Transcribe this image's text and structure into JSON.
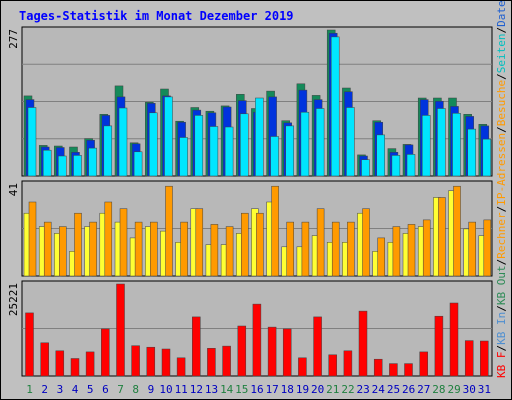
{
  "title": "Tages-Statistik im Monat Dezember 2019",
  "colors": {
    "background": "#c0c0c0",
    "panel": "#b8b8b8",
    "grid": "#808080",
    "title": "#0000ff",
    "weekday_label": "#0000c0",
    "weekend_label": "#208040",
    "anfragen": "#148a5a",
    "dateien": "#0033dd",
    "seiten": "#00e6ff",
    "rechner": "#ffff33",
    "besuche": "#ff9a00",
    "kbf": "#ff0000"
  },
  "side_labels": [
    {
      "text": "KB F",
      "color": "#ff0000"
    },
    {
      "text": "/",
      "color": "#000000"
    },
    {
      "text": "KB In",
      "color": "#4f8fd0"
    },
    {
      "text": "/",
      "color": "#000000"
    },
    {
      "text": "KB Out",
      "color": "#2e8b57"
    },
    {
      "text": "/",
      "color": "#000000"
    },
    {
      "text": "Rechner",
      "color": "#ff9a00"
    },
    {
      "text": "/",
      "color": "#000000"
    },
    {
      "text": "IP-Adressen",
      "color": "#ff9a00"
    },
    {
      "text": "/",
      "color": "#000000"
    },
    {
      "text": "Besuche",
      "color": "#ff9a00"
    },
    {
      "text": "/",
      "color": "#000000"
    },
    {
      "text": "Seiten",
      "color": "#00bfbf"
    },
    {
      "text": "/",
      "color": "#000000"
    },
    {
      "text": "Dateien",
      "color": "#1e5fd0"
    },
    {
      "text": "/",
      "color": "#000000"
    },
    {
      "text": "Anfragen",
      "color": "#2e8b57"
    }
  ],
  "chart_data": [
    {
      "type": "bar",
      "panel": "top",
      "ytick_label": "277",
      "ylim": [
        0,
        277
      ],
      "x": [
        1,
        2,
        3,
        4,
        5,
        6,
        7,
        8,
        9,
        10,
        11,
        12,
        13,
        14,
        15,
        16,
        17,
        18,
        19,
        20,
        21,
        22,
        23,
        24,
        25,
        26,
        27,
        28,
        29,
        30,
        31
      ],
      "series": [
        {
          "name": "Anfragen",
          "values": [
            152,
            58,
            57,
            55,
            71,
            117,
            171,
            63,
            140,
            165,
            104,
            130,
            123,
            133,
            155,
            128,
            161,
            105,
            175,
            153,
            277,
            167,
            40,
            105,
            52,
            60,
            148,
            148,
            148,
            117,
            98
          ]
        },
        {
          "name": "Dateien",
          "values": [
            145,
            55,
            54,
            45,
            68,
            115,
            150,
            61,
            138,
            152,
            102,
            125,
            120,
            131,
            143,
            121,
            150,
            101,
            163,
            145,
            271,
            160,
            38,
            102,
            45,
            59,
            145,
            142,
            132,
            113,
            95
          ]
        },
        {
          "name": "Seiten",
          "values": [
            130,
            49,
            38,
            39,
            53,
            95,
            129,
            46,
            120,
            150,
            73,
            115,
            94,
            93,
            118,
            148,
            75,
            95,
            121,
            128,
            264,
            130,
            31,
            78,
            39,
            41,
            115,
            128,
            119,
            89,
            70
          ]
        }
      ]
    },
    {
      "type": "bar",
      "panel": "middle",
      "ytick_label": "41",
      "ylim": [
        0,
        41
      ],
      "x": [
        1,
        2,
        3,
        4,
        5,
        6,
        7,
        8,
        9,
        10,
        11,
        12,
        13,
        14,
        15,
        16,
        17,
        18,
        19,
        20,
        21,
        22,
        23,
        24,
        25,
        26,
        27,
        28,
        29,
        30,
        31
      ],
      "series": [
        {
          "name": "Rechner",
          "values": [
            28,
            22,
            19,
            11,
            22,
            28,
            24,
            17,
            22,
            20,
            15,
            30,
            14,
            14,
            19,
            30,
            33,
            13,
            13,
            18,
            15,
            15,
            28,
            11,
            15,
            19,
            22,
            35,
            38,
            21,
            18
          ]
        },
        {
          "name": "Besuche",
          "values": [
            33,
            24,
            22,
            28,
            24,
            33,
            30,
            24,
            24,
            40,
            24,
            30,
            23,
            22,
            28,
            28,
            40,
            24,
            24,
            30,
            24,
            24,
            30,
            17,
            22,
            23,
            25,
            35,
            40,
            24,
            25
          ]
        }
      ]
    },
    {
      "type": "bar",
      "panel": "bottom",
      "ytick_label": "25221",
      "ylim": [
        0,
        25221
      ],
      "x": [
        1,
        2,
        3,
        4,
        5,
        6,
        7,
        8,
        9,
        10,
        11,
        12,
        13,
        14,
        15,
        16,
        17,
        18,
        19,
        20,
        21,
        22,
        23,
        24,
        25,
        26,
        27,
        28,
        29,
        30,
        31
      ],
      "series": [
        {
          "name": "KB F",
          "values": [
            17300,
            9100,
            6900,
            4800,
            6600,
            12900,
            25221,
            8300,
            7900,
            7400,
            5000,
            16200,
            7600,
            8200,
            13700,
            19700,
            13400,
            12900,
            5000,
            16200,
            5800,
            6900,
            17800,
            4600,
            3400,
            3400,
            6600,
            16400,
            20000,
            9700,
            9600
          ]
        }
      ]
    }
  ],
  "weekend_days": [
    1,
    7,
    8,
    14,
    15,
    21,
    22,
    28,
    29
  ]
}
